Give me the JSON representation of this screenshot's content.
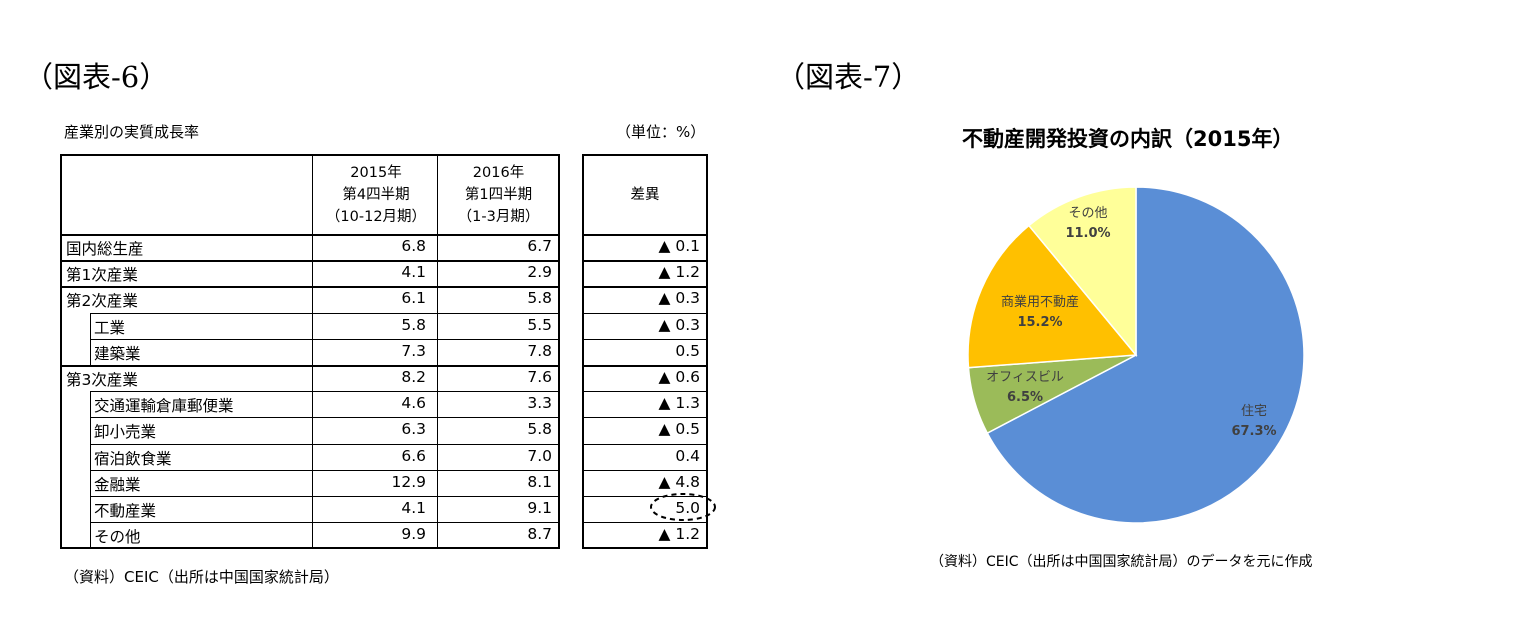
{
  "figure6": {
    "label": "（図表-6）",
    "title": "産業別の実質成長率",
    "unit": "（単位：%）",
    "source": "（資料）CEIC（出所は中国国家統計局）",
    "columns": {
      "col1": [
        "2015年",
        "第4四半期",
        "（10-12月期）"
      ],
      "col2": [
        "2016年",
        "第1四半期",
        "（1-3月期）"
      ],
      "diff": "差異"
    },
    "rows": [
      {
        "name": "国内総生産",
        "indent": 0,
        "v1": "6.8",
        "v2": "6.7",
        "diff": "▲ 0.1"
      },
      {
        "name": "第1次産業",
        "indent": 0,
        "v1": "4.1",
        "v2": "2.9",
        "diff": "▲ 1.2"
      },
      {
        "name": "第2次産業",
        "indent": 0,
        "v1": "6.1",
        "v2": "5.8",
        "diff": "▲ 0.3"
      },
      {
        "name": "工業",
        "indent": 1,
        "v1": "5.8",
        "v2": "5.5",
        "diff": "▲ 0.3"
      },
      {
        "name": "建築業",
        "indent": 1,
        "v1": "7.3",
        "v2": "7.8",
        "diff": "0.5"
      },
      {
        "name": "第3次産業",
        "indent": 0,
        "v1": "8.2",
        "v2": "7.6",
        "diff": "▲ 0.6"
      },
      {
        "name": "交通運輸倉庫郵便業",
        "indent": 1,
        "v1": "4.6",
        "v2": "3.3",
        "diff": "▲ 1.3"
      },
      {
        "name": "卸小売業",
        "indent": 1,
        "v1": "6.3",
        "v2": "5.8",
        "diff": "▲ 0.5"
      },
      {
        "name": "宿泊飲食業",
        "indent": 1,
        "v1": "6.6",
        "v2": "7.0",
        "diff": "0.4"
      },
      {
        "name": "金融業",
        "indent": 1,
        "v1": "12.9",
        "v2": "8.1",
        "diff": "▲ 4.8"
      },
      {
        "name": "不動産業",
        "indent": 1,
        "v1": "4.1",
        "v2": "9.1",
        "diff": "5.0",
        "highlight": true
      },
      {
        "name": "その他",
        "indent": 1,
        "v1": "9.9",
        "v2": "8.7",
        "diff": "▲ 1.2"
      }
    ]
  },
  "figure7": {
    "label": "（図表-7）",
    "source": "（資料）CEIC（出所は中国国家統計局）のデータを元に作成"
  },
  "chart_data": {
    "type": "pie",
    "title": "不動産開発投資の内訳（2015年）",
    "slices": [
      {
        "label": "住宅",
        "value": 67.3,
        "value_label": "67.3%",
        "color": "#5a8ed6"
      },
      {
        "label": "オフィスビル",
        "value": 6.5,
        "value_label": "6.5%",
        "color": "#9bbb59"
      },
      {
        "label": "商業用不動産",
        "value": 15.2,
        "value_label": "15.2%",
        "color": "#ffc000"
      },
      {
        "label": "その他",
        "value": 11.0,
        "value_label": "11.0%",
        "color": "#ffff99"
      }
    ],
    "start": "12 o'clock",
    "direction": "clockwise"
  }
}
